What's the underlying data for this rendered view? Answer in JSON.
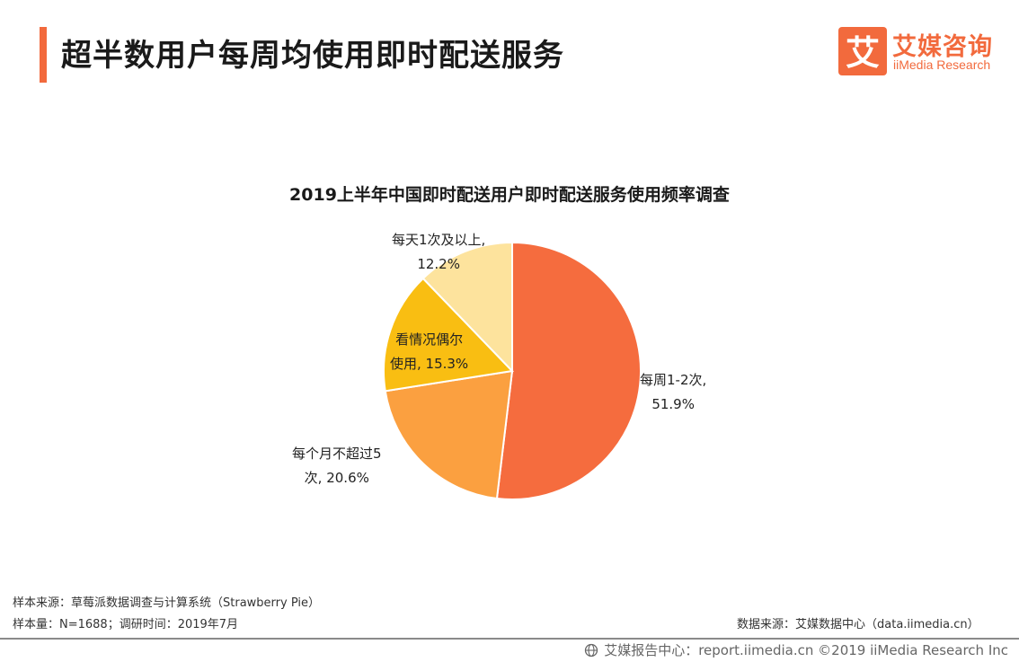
{
  "header": {
    "title": "超半数用户每周均使用即时配送服务",
    "brand_name": "艾媒咨询",
    "brand_sub": "iiMedia Research",
    "brand_logo_char": "艾"
  },
  "colors": {
    "accent": "#f26a3d",
    "slices": [
      "#f56c3e",
      "#fba040",
      "#f9be12",
      "#fde39d"
    ]
  },
  "chart_data": {
    "type": "pie",
    "title": "2019上半年中国即时配送用户即时配送服务使用频率调查",
    "slices": [
      {
        "line1": "每周1-2次,",
        "line2": "51.9%",
        "value": 51.9
      },
      {
        "line1": "每个月不超过5",
        "line2": "次, 20.6%",
        "value": 20.6
      },
      {
        "line1": "看情况偶尔",
        "line2": "使用, 15.3%",
        "value": 15.3
      },
      {
        "line1": "每天1次及以上,",
        "line2": "12.2%",
        "value": 12.2
      }
    ]
  },
  "footer": {
    "sample_source": "样本来源：草莓派数据调查与计算系统（Strawberry Pie）",
    "sample_size": "样本量：N=1688；调研时间：2019年7月",
    "data_source": "数据来源：艾媒数据中心（data.iimedia.cn）",
    "copyright": "艾媒报告中心：report.iimedia.cn   ©2019  iiMedia Research  Inc"
  }
}
